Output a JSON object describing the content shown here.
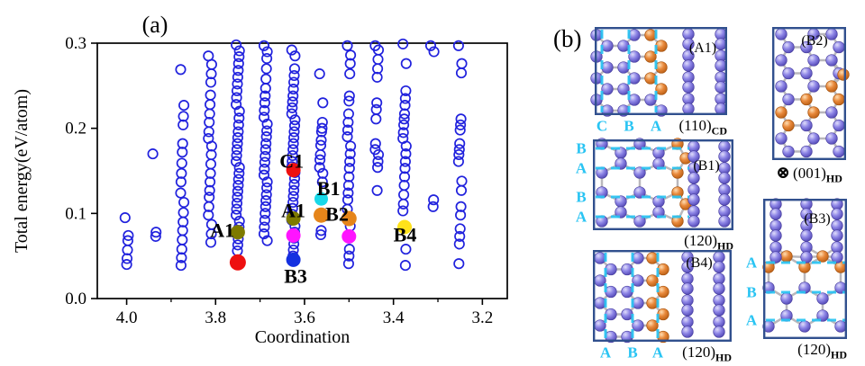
{
  "panel_a": {
    "tag": "(a)",
    "xlabel": "Coordination",
    "ylabel": "Total energy(eV/atom)",
    "x_tick_labels": [
      "4.0",
      "3.8",
      "3.6",
      "3.4",
      "3.2"
    ],
    "y_tick_labels": [
      "0.0",
      "0.1",
      "0.2",
      "0.3"
    ],
    "axis_color": "#000000",
    "open_marker_color": "#2021dd"
  },
  "chart_data": {
    "type": "scatter",
    "title": "",
    "xlabel": "Coordination",
    "ylabel": "Total energy(eV/atom)",
    "x_reversed": true,
    "xlim": [
      4.066,
      3.144
    ],
    "ylim": [
      0.0,
      0.3
    ],
    "x_ticks": [
      4.0,
      3.8,
      3.6,
      3.4,
      3.2
    ],
    "x_minor_ticks": [
      3.9,
      3.7,
      3.5,
      3.3
    ],
    "y_ticks": [
      0.0,
      0.1,
      0.2,
      0.3
    ],
    "grid": false,
    "open_circles_marker": "open-circle",
    "open_circles_color": "#2021dd",
    "columns": [
      {
        "x": 4.0,
        "energies": [
          0.095,
          0.074,
          0.068,
          0.057,
          0.047,
          0.04
        ]
      },
      {
        "x": 3.9375,
        "energies": [
          0.17,
          0.078,
          0.073
        ]
      },
      {
        "x": 3.875,
        "energies": [
          0.269,
          0.227,
          0.214,
          0.204,
          0.182,
          0.172,
          0.159,
          0.147,
          0.137,
          0.124,
          0.113,
          0.101,
          0.09,
          0.08,
          0.069,
          0.058,
          0.048,
          0.039
        ]
      },
      {
        "x": 3.8125,
        "energies": [
          0.285,
          0.275,
          0.264,
          0.254,
          0.239,
          0.228,
          0.217,
          0.207,
          0.196,
          0.188,
          0.179,
          0.169,
          0.158,
          0.147,
          0.137,
          0.127,
          0.119,
          0.108,
          0.098,
          0.087,
          0.076,
          0.066
        ]
      },
      {
        "x": 3.75,
        "energies": [
          0.298,
          0.291,
          0.284,
          0.276,
          0.268,
          0.26,
          0.252,
          0.244,
          0.236,
          0.228,
          0.22,
          0.212,
          0.204,
          0.196,
          0.189,
          0.182,
          0.175,
          0.168,
          0.161,
          0.154,
          0.147,
          0.14,
          0.133,
          0.126,
          0.119,
          0.112,
          0.105,
          0.098,
          0.091,
          0.084,
          0.077,
          0.07,
          0.063,
          0.056
        ]
      },
      {
        "x": 3.6875,
        "energies": [
          0.297,
          0.29,
          0.282,
          0.27,
          0.258,
          0.247,
          0.238,
          0.23,
          0.221,
          0.213,
          0.205,
          0.197,
          0.19,
          0.182,
          0.175,
          0.167,
          0.16,
          0.152,
          0.145,
          0.137,
          0.13,
          0.122,
          0.115,
          0.108,
          0.1,
          0.092,
          0.084,
          0.076,
          0.068
        ]
      },
      {
        "x": 3.625,
        "energies": [
          0.292,
          0.285,
          0.27,
          0.262,
          0.254,
          0.246,
          0.238,
          0.231,
          0.224,
          0.217,
          0.21,
          0.203,
          0.196,
          0.189,
          0.182,
          0.175,
          0.168,
          0.161,
          0.155,
          0.148,
          0.141,
          0.134,
          0.127,
          0.12,
          0.113,
          0.106,
          0.099,
          0.092,
          0.085,
          0.078,
          0.071,
          0.064,
          0.057,
          0.05
        ]
      },
      {
        "x": 3.5625,
        "energies": [
          0.264,
          0.23,
          0.207,
          0.2,
          0.196,
          0.186,
          0.18,
          0.169,
          0.163,
          0.154,
          0.147,
          0.137,
          0.116,
          0.098,
          0.08,
          0.075
        ]
      },
      {
        "x": 3.5,
        "energies": [
          0.297,
          0.286,
          0.276,
          0.264,
          0.238,
          0.232,
          0.217,
          0.207,
          0.198,
          0.19,
          0.179,
          0.17,
          0.161,
          0.153,
          0.143,
          0.133,
          0.124,
          0.116,
          0.105,
          0.094,
          0.085,
          0.073,
          0.058,
          0.05,
          0.041
        ]
      },
      {
        "x": 3.4375,
        "energies": [
          0.297,
          0.292,
          0.281,
          0.27,
          0.26,
          0.23,
          0.222,
          0.211,
          0.182,
          0.175,
          0.169,
          0.161,
          0.154,
          0.127
        ]
      },
      {
        "x": 3.375,
        "energies": [
          0.299,
          0.276,
          0.244,
          0.235,
          0.227,
          0.217,
          0.211,
          0.204,
          0.195,
          0.188,
          0.179,
          0.17,
          0.161,
          0.153,
          0.143,
          0.133,
          0.122,
          0.111,
          0.103,
          0.084,
          0.058,
          0.039
        ]
      },
      {
        "x": 3.3125,
        "energies": [
          0.297,
          0.29,
          0.116,
          0.108
        ]
      },
      {
        "x": 3.25,
        "energies": [
          0.297,
          0.276,
          0.265,
          0.211,
          0.204,
          0.198,
          0.182,
          0.175,
          0.169,
          0.161,
          0.138,
          0.127,
          0.108,
          0.098,
          0.082,
          0.073,
          0.064,
          0.041
        ]
      }
    ],
    "highlighted": [
      {
        "name": "A1",
        "color": "#7e7a00",
        "marker_radius": 8,
        "points": [
          [
            3.75,
            0.078
          ],
          [
            3.625,
            0.094
          ]
        ]
      },
      {
        "name": "C1",
        "color": "#ee1010",
        "marker_radius": 8,
        "points": [
          [
            3.625,
            0.151
          ]
        ]
      },
      {
        "name": "B1",
        "color": "#18d8e8",
        "marker_radius": 7.5,
        "points": [
          [
            3.5625,
            0.117
          ]
        ]
      },
      {
        "name": "B2",
        "color": "#e5851a",
        "marker_radius": 8.5,
        "points": [
          [
            3.5625,
            0.098
          ],
          [
            3.5,
            0.094
          ]
        ]
      },
      {
        "name": "B3",
        "color": "#1430e0",
        "marker_radius": 8,
        "points": [
          [
            3.625,
            0.0455
          ]
        ]
      },
      {
        "name": "B4",
        "color": "#ffe21a",
        "marker_radius": 8,
        "points": [
          [
            3.375,
            0.084
          ]
        ]
      },
      {
        "name": "unlabeled-red",
        "color": "#ee1010",
        "marker_radius": 9,
        "points": [
          [
            3.75,
            0.0425
          ]
        ]
      },
      {
        "name": "unlabeled-magenta",
        "color": "#ff14ff",
        "marker_radius": 8,
        "points": [
          [
            3.625,
            0.074
          ],
          [
            3.5,
            0.073
          ]
        ]
      }
    ],
    "annotations": [
      {
        "text": "A1",
        "x": 3.785,
        "y": 0.0795
      },
      {
        "text": "C1",
        "x": 3.629,
        "y": 0.161
      },
      {
        "text": "A1",
        "x": 3.625,
        "y": 0.103
      },
      {
        "text": "B1",
        "x": 3.546,
        "y": 0.129
      },
      {
        "text": "B2",
        "x": 3.527,
        "y": 0.099
      },
      {
        "text": "B3",
        "x": 3.62,
        "y": 0.026
      },
      {
        "text": "B4",
        "x": 3.374,
        "y": 0.0745
      }
    ]
  },
  "panel_b": {
    "tag": "(b)",
    "colors": {
      "atom_purple": "#7470cf",
      "atom_orange": "#df7b28",
      "bond": "#b9b7bc",
      "box_border": "#31508e",
      "layer_label": "#29c4f3"
    },
    "structures": [
      {
        "id": "A1",
        "label": "(A1)",
        "plane": "(110)",
        "phase_subscript": "CD",
        "layer_labels": [
          "C",
          "B",
          "A"
        ],
        "layer_side": "bottom"
      },
      {
        "id": "B2",
        "label": "(B2)",
        "plane": "(001)",
        "phase_subscript": "HD",
        "view_prefix": "⊗",
        "layer_labels": [],
        "layer_side": "none"
      },
      {
        "id": "B1",
        "label": "(B1)",
        "plane": "(120)",
        "phase_subscript": "HD",
        "layer_labels": [
          "B",
          "A",
          "B",
          "A"
        ],
        "layer_side": "left"
      },
      {
        "id": "B4",
        "label": "(B4)",
        "plane": "(120)",
        "phase_subscript": "HD",
        "layer_labels": [
          "A",
          "B",
          "A"
        ],
        "layer_side": "bottom"
      },
      {
        "id": "B3",
        "label": "(B3)",
        "plane": "(120)",
        "phase_subscript": "HD",
        "layer_labels": [
          "A",
          "B",
          "A"
        ],
        "layer_side": "left"
      }
    ]
  }
}
